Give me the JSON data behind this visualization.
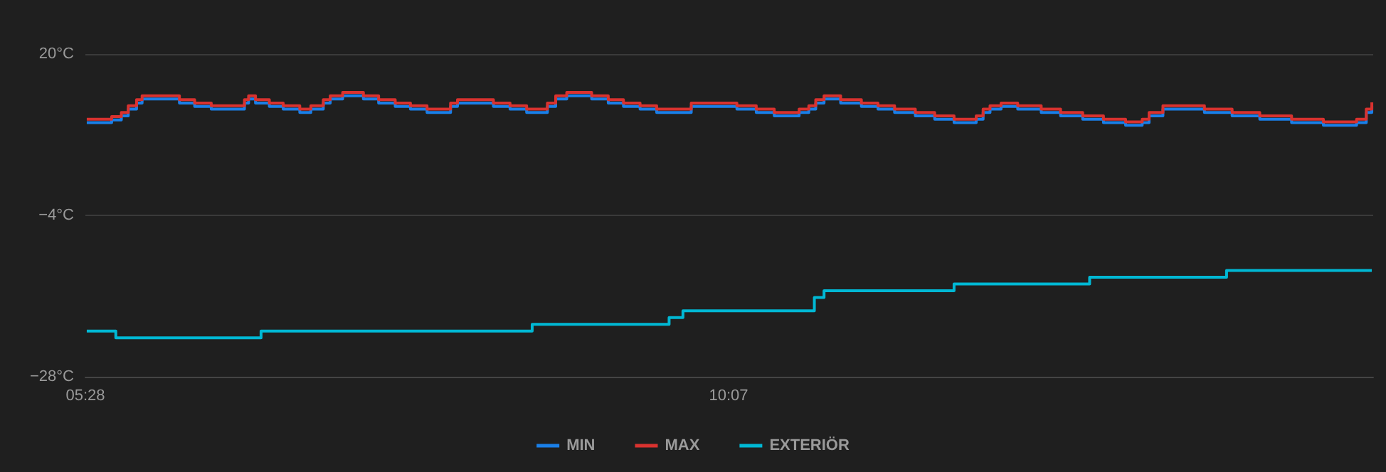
{
  "chart_data": {
    "type": "step",
    "x": [
      5.48,
      5.66,
      5.73,
      5.78,
      5.84,
      5.88,
      6.15,
      6.26,
      6.38,
      6.62,
      6.65,
      6.7,
      6.8,
      6.9,
      7.02,
      7.1,
      7.19,
      7.24,
      7.33,
      7.48,
      7.59,
      7.71,
      7.82,
      7.94,
      8.11,
      8.16,
      8.42,
      8.54,
      8.66,
      8.81,
      8.87,
      8.95,
      9.13,
      9.25,
      9.36,
      9.48,
      9.6,
      9.85,
      10.18,
      10.32,
      10.45,
      10.63,
      10.7,
      10.75,
      10.81,
      10.93,
      11.08,
      11.2,
      11.32,
      11.47,
      11.61,
      11.75,
      11.91,
      11.96,
      12.01,
      12.09,
      12.21,
      12.38,
      12.52,
      12.68,
      12.83,
      12.99,
      13.11,
      13.16,
      13.26,
      13.56,
      13.76,
      13.96,
      14.19,
      14.42,
      14.66,
      14.73,
      14.77
    ],
    "series": [
      {
        "name": "MIN",
        "color": "#1a7fe8",
        "values": [
          9.8,
          10.2,
          10.8,
          11.8,
          12.7,
          13.3,
          12.7,
          12.2,
          11.8,
          12.7,
          13.3,
          12.7,
          12.2,
          11.8,
          11.3,
          11.8,
          12.7,
          13.3,
          13.8,
          13.3,
          12.7,
          12.2,
          11.8,
          11.3,
          12.2,
          12.7,
          12.2,
          11.8,
          11.3,
          12.2,
          13.3,
          13.8,
          13.3,
          12.7,
          12.2,
          11.8,
          11.3,
          12.2,
          11.8,
          11.3,
          10.8,
          11.3,
          11.8,
          12.7,
          13.3,
          12.7,
          12.2,
          11.8,
          11.3,
          10.8,
          10.3,
          9.8,
          10.3,
          11.3,
          11.8,
          12.2,
          11.8,
          11.3,
          10.8,
          10.3,
          9.8,
          9.4,
          9.8,
          10.8,
          11.8,
          11.3,
          10.8,
          10.3,
          9.8,
          9.4,
          9.8,
          11.3,
          12.3
        ]
      },
      {
        "name": "MAX",
        "color": "#d9322f",
        "values": [
          10.3,
          10.7,
          11.3,
          12.3,
          13.2,
          13.8,
          13.2,
          12.7,
          12.3,
          13.2,
          13.8,
          13.2,
          12.7,
          12.3,
          11.8,
          12.3,
          13.2,
          13.8,
          14.3,
          13.8,
          13.2,
          12.7,
          12.3,
          11.8,
          12.7,
          13.2,
          12.7,
          12.3,
          11.8,
          12.7,
          13.8,
          14.3,
          13.8,
          13.2,
          12.7,
          12.3,
          11.8,
          12.7,
          12.3,
          11.8,
          11.3,
          11.8,
          12.3,
          13.2,
          13.8,
          13.2,
          12.7,
          12.3,
          11.8,
          11.3,
          10.8,
          10.3,
          10.8,
          11.8,
          12.3,
          12.7,
          12.3,
          11.8,
          11.3,
          10.8,
          10.3,
          9.9,
          10.3,
          11.3,
          12.3,
          11.8,
          11.3,
          10.8,
          10.3,
          9.9,
          10.3,
          11.8,
          12.8
        ]
      },
      {
        "name": "EXTERIÖR",
        "color": "#00b8d4",
        "x": [
          5.48,
          5.69,
          6.74,
          8.7,
          9.69,
          9.79,
          10.74,
          10.81,
          11.75,
          12.73,
          13.72,
          14.77
        ],
        "values": [
          -21.2,
          -22.2,
          -21.2,
          -20.2,
          -19.2,
          -18.2,
          -16.2,
          -15.2,
          -14.2,
          -13.2,
          -12.2,
          -12.2
        ]
      }
    ],
    "xlim": [
      5.47,
      14.78
    ],
    "xticks": [
      {
        "value": 5.47,
        "label": "05:28"
      },
      {
        "value": 10.12,
        "label": "10:07"
      }
    ],
    "ylim": [
      -28,
      20
    ],
    "yticks": [
      {
        "value": -28,
        "label": "−28°C"
      },
      {
        "value": -4,
        "label": "−4°C"
      },
      {
        "value": 20,
        "label": "20°C"
      }
    ],
    "grid": "y",
    "legend": "bottom",
    "marker": "none",
    "line_style": "solid"
  }
}
